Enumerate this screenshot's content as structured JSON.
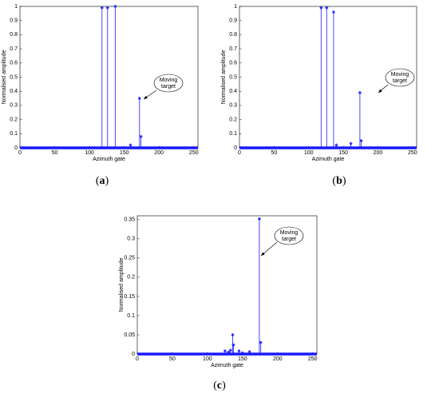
{
  "chart_data": [
    {
      "type": "stem",
      "caption": "a",
      "xlabel": "Azimuth gate",
      "ylabel": "Normalised amplitude",
      "annotation": [
        "Moving",
        "target"
      ],
      "color": "#1a1aff",
      "x": [
        118,
        126,
        137,
        159,
        172,
        174
      ],
      "values": [
        0.99,
        0.99,
        1.0,
        0.02,
        0.35,
        0.08
      ],
      "xlim": [
        0,
        256
      ],
      "xticks": [
        0,
        50,
        100,
        150,
        200,
        250
      ],
      "ylim": [
        0,
        1
      ],
      "yticks": [
        0,
        0.1,
        0.2,
        0.3,
        0.4,
        0.5,
        0.6,
        0.7,
        0.8,
        0.9,
        1
      ]
    },
    {
      "type": "stem",
      "caption": "b",
      "xlabel": "Azimuth gate",
      "ylabel": "Normalised amplitude",
      "annotation": [
        "Moving",
        "target"
      ],
      "color": "#1a1aff",
      "x": [
        118,
        126,
        136,
        140,
        161,
        174,
        176
      ],
      "values": [
        0.99,
        0.99,
        0.96,
        0.02,
        0.03,
        0.39,
        0.05
      ],
      "xlim": [
        0,
        256
      ],
      "xticks": [
        0,
        50,
        100,
        150,
        200,
        250
      ],
      "ylim": [
        0,
        1
      ],
      "yticks": [
        0,
        0.1,
        0.2,
        0.3,
        0.4,
        0.5,
        0.6,
        0.7,
        0.8,
        0.9,
        1
      ]
    },
    {
      "type": "stem",
      "caption": "c",
      "xlabel": "Azimuth gate",
      "ylabel": "Normalised amplitude",
      "annotation": [
        "Moving",
        "target"
      ],
      "color": "#1a1aff",
      "x": [
        125,
        130,
        133,
        136,
        137,
        145,
        150,
        160,
        174,
        176
      ],
      "values": [
        0.008,
        0.005,
        0.01,
        0.05,
        0.024,
        0.008,
        0.003,
        0.006,
        0.352,
        0.03
      ],
      "xlim": [
        0,
        256
      ],
      "xticks": [
        0,
        50,
        100,
        150,
        200,
        250
      ],
      "ylim": [
        0,
        0.36
      ],
      "yticks": [
        0,
        0.05,
        0.1,
        0.15,
        0.2,
        0.25,
        0.3,
        0.35
      ]
    }
  ]
}
